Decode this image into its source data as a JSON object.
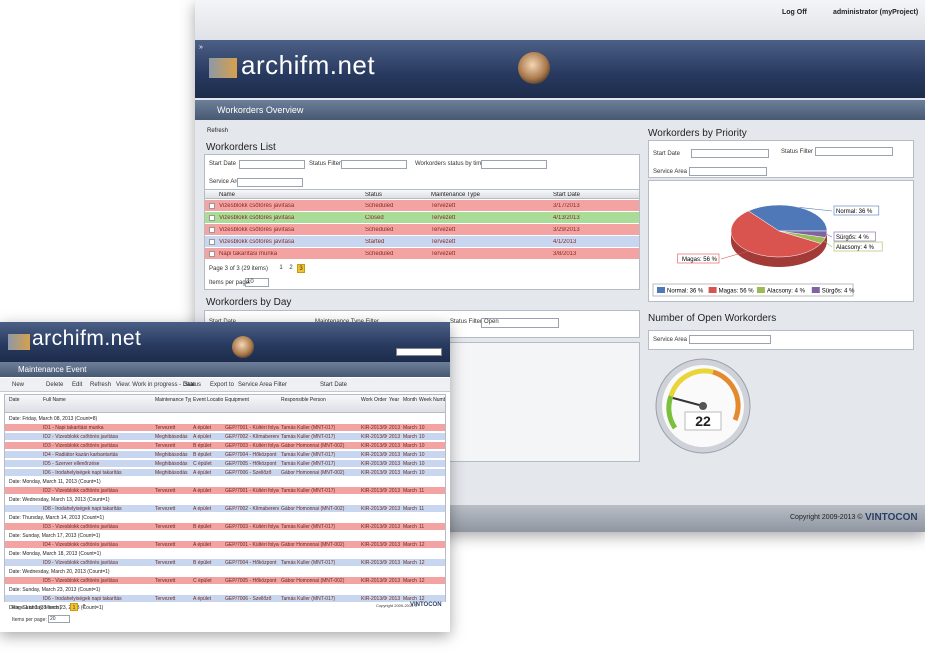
{
  "header": {
    "logo": "archifm.net",
    "log_off": "Log Off",
    "user": "administrator (myProject)"
  },
  "overview": {
    "title": "Workorders Overview",
    "refresh": "Refresh"
  },
  "workorders_list": {
    "title": "Workorders List",
    "filters": [
      "Start Date",
      "Status Filter",
      "Workorders status by time",
      "Service Area"
    ],
    "columns": [
      "Name",
      "Status",
      "Maintenance Type",
      "Start Date"
    ],
    "rows": [
      {
        "cells": [
          "Vizesblokk csőtörés javítása",
          "Scheduled",
          "Tervezett",
          "3/17/2013"
        ],
        "color": "#f4a3a3"
      },
      {
        "cells": [
          "Vizesblokk csőtörés javítása",
          "Closed",
          "Tervezett",
          "4/13/2013"
        ],
        "color": "#a9dc97"
      },
      {
        "cells": [
          "Vizesblokk csőtörés javítása",
          "Scheduled",
          "Tervezett",
          "3/29/2013"
        ],
        "color": "#f4a3a3"
      },
      {
        "cells": [
          "Vizesblokk csőtörés javítása",
          "Started",
          "Tervezett",
          "4/1/2013"
        ],
        "color": "#c8d7ef"
      },
      {
        "cells": [
          "Napi takarítási munka",
          "Scheduled",
          "Tervezett",
          "3/8/2013"
        ],
        "color": "#f4a3a3"
      }
    ],
    "pager": "Page 3 of 3 (29 items)",
    "pages": [
      "1",
      "2",
      "3"
    ],
    "items_per_page_label": "Items per page:",
    "items_per_page": "10"
  },
  "workorders_by_day": {
    "title": "Workorders by Day",
    "filters": [
      "Start Date",
      "Maintenance Type Filter",
      "Status Filter"
    ],
    "status_value": "Open"
  },
  "priority": {
    "title": "Workorders by Priority",
    "filters": [
      "Start Date",
      "Status Filter",
      "Service Area"
    ]
  },
  "chart_data": {
    "type": "pie",
    "categories": [
      "Normal",
      "Magas",
      "Alacsony",
      "Sürgős"
    ],
    "values": [
      36,
      56,
      4,
      4
    ],
    "value_labels": [
      "Normal: 36 %",
      "Magas: 56 %",
      "Alacsony: 4 %",
      "Sürgős: 4 %"
    ],
    "colors": [
      "#4f78b8",
      "#d9534f",
      "#9bbb59",
      "#8064a2"
    ]
  },
  "open_workorders": {
    "title": "Number of Open Workorders",
    "filter": "Service Area",
    "value": 22
  },
  "footer": {
    "copyright": "Copyright 2009-2013 ©",
    "brand": "VINTOCON"
  },
  "event_window": {
    "logo": "archifm.net",
    "title": "Maintenance Event",
    "toolbar": [
      "New",
      "Delete",
      "Edit",
      "Refresh",
      "View: Work in progress - Date",
      "Status",
      "Export to",
      "Service Area Filter",
      "Start Date"
    ],
    "columns": [
      "Date",
      "Full Name",
      "Maintenance Type",
      "Event Location",
      "Equipment",
      "Responsible Person",
      "Work Order",
      "Year",
      "Month",
      "Week Number"
    ],
    "rows": [
      {
        "group": "Date: Friday, March 08, 2013 (Count=8)"
      },
      {
        "cells": [
          "ID1 - Napi takarítási munka",
          "Tervezett",
          "A épület",
          "GÉP/7001 - Kültéri folyadékhűtő",
          "Tamás Kuller (MNT-017)",
          "KIR-2013/00003",
          "2013",
          "March",
          "10"
        ],
        "color": "#f4a3a3"
      },
      {
        "cells": [
          "ID2 - Vizesblokk csőtörés javítása",
          "Meghibásodás",
          "A épület",
          "GÉP/7002 - Klímaberendezés",
          "Tamás Kuller (MNT-017)",
          "KIR-2013/00007",
          "2013",
          "March",
          "10"
        ],
        "color": "#c8d7ef"
      },
      {
        "cells": [
          "ID3 - Vizesblokk csőtörés javítása",
          "Tervezett",
          "B épület",
          "GÉP/7003 - Kültéri folyadékhűtő",
          "Gábor Homonnai (MNT-002)",
          "KIR-2013/00008",
          "2013",
          "March",
          "10"
        ],
        "color": "#f4a3a3"
      },
      {
        "cells": [
          "ID4 - Radiátor kazán karbantartás",
          "Meghibásodás",
          "B épület",
          "GÉP/7004 - Hőközpont",
          "Tamás Kuller (MNT-017)",
          "KIR-2013/00009",
          "2013",
          "March",
          "10"
        ],
        "color": "#c8d7ef"
      },
      {
        "cells": [
          "ID5 - Szerver ellenőrzése",
          "Meghibásodás",
          "C épület",
          "GÉP/7005 - Hőközpont",
          "Tamás Kuller (MNT-017)",
          "KIR-2013/00010",
          "2013",
          "March",
          "10"
        ],
        "color": "#c8d7ef"
      },
      {
        "cells": [
          "ID6 - Irodahelyiségek napi takarítás",
          "Meghibásodás",
          "A épület",
          "GÉP/7006 - Szellőző",
          "Gábor Homonnai (MNT-002)",
          "KIR-2013/00011",
          "2013",
          "March",
          "10"
        ],
        "color": "#c8d7ef"
      },
      {
        "group": "Date: Monday, March 11, 2013 (Count=1)"
      },
      {
        "cells": [
          "ID2 - Vizesblokk csőtörés javítása",
          "Tervezett",
          "A épület",
          "GÉP/7001 - Kültéri folyadékhűtő",
          "Tamás Kuller (MNT-017)",
          "KIR-2013/00004",
          "2013",
          "March",
          "11"
        ],
        "color": "#f4a3a3"
      },
      {
        "group": "Date: Wednesday, March 13, 2013 (Count=1)"
      },
      {
        "cells": [
          "ID8 - Irodahelyiségek napi takarítás",
          "Tervezett",
          "A épület",
          "GÉP/7002 - Klímaberendezés",
          "Gábor Homonnai (MNT-002)",
          "KIR-2013/00005",
          "2013",
          "March",
          "11"
        ],
        "color": "#c8d7ef"
      },
      {
        "group": "Date: Thursday, March 14, 2013 (Count=1)"
      },
      {
        "cells": [
          "ID3 - Vizesblokk csőtörés javítása",
          "Tervezett",
          "B épület",
          "GÉP/7003 - Kültéri folyadékhűtő",
          "Tamás Kuller (MNT-017)",
          "KIR-2013/00006",
          "2013",
          "March",
          "11"
        ],
        "color": "#f4a3a3"
      },
      {
        "group": "Date: Sunday, March 17, 2013 (Count=1)"
      },
      {
        "cells": [
          "ID4 - Vizesblokk csőtörés javítása",
          "Tervezett",
          "A épület",
          "GÉP/7001 - Kültéri folyadékhűtő",
          "Gábor Homonnai (MNT-002)",
          "KIR-2013/00012",
          "2013",
          "March",
          "12"
        ],
        "color": "#f4a3a3"
      },
      {
        "group": "Date: Monday, March 18, 2013 (Count=1)"
      },
      {
        "cells": [
          "ID9 - Vizesblokk csőtörés javítása",
          "Tervezett",
          "B épület",
          "GÉP/7004 - Hőközpont",
          "Tamás Kuller (MNT-017)",
          "KIR-2013/00013",
          "2013",
          "March",
          "12"
        ],
        "color": "#c8d7ef"
      },
      {
        "group": "Date: Wednesday, March 20, 2013 (Count=1)"
      },
      {
        "cells": [
          "ID5 - Vizesblokk csőtörés javítása",
          "Tervezett",
          "C épület",
          "GÉP/7005 - Hőközpont",
          "Gábor Homonnai (MNT-002)",
          "KIR-2013/00014",
          "2013",
          "March",
          "12"
        ],
        "color": "#f4a3a3"
      },
      {
        "group": "Date: Sunday, March 23, 2013 (Count=1)"
      },
      {
        "cells": [
          "ID6 - Irodahelyiségek napi takarítás",
          "Tervezett",
          "A épület",
          "GÉP/7006 - Szellőző",
          "Tamás Kuller (MNT-017)",
          "KIR-2013/00015",
          "2013",
          "March",
          "12"
        ],
        "color": "#c8d7ef"
      },
      {
        "group": "Date: Saturday, March 23, 2013 (Count=1)"
      }
    ],
    "pager": "Page 1 of 2 (38 items)",
    "pages": [
      "1",
      "2"
    ],
    "items_per_page_label": "Items per page:",
    "items_per_page": "20",
    "copyright": "Copyright 2009-2013 ©",
    "brand": "VINTOCON"
  }
}
